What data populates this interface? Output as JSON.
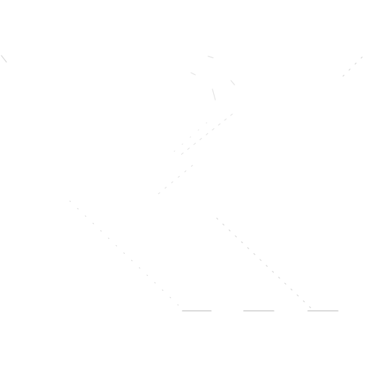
{
  "image": {
    "kind": "faint line art on white background",
    "background_color": "#ffffff",
    "line_color_primary": "#d9d9d9",
    "line_color_secondary": "#e4e4e4",
    "line_color_base": "#cfcfcf"
  }
}
